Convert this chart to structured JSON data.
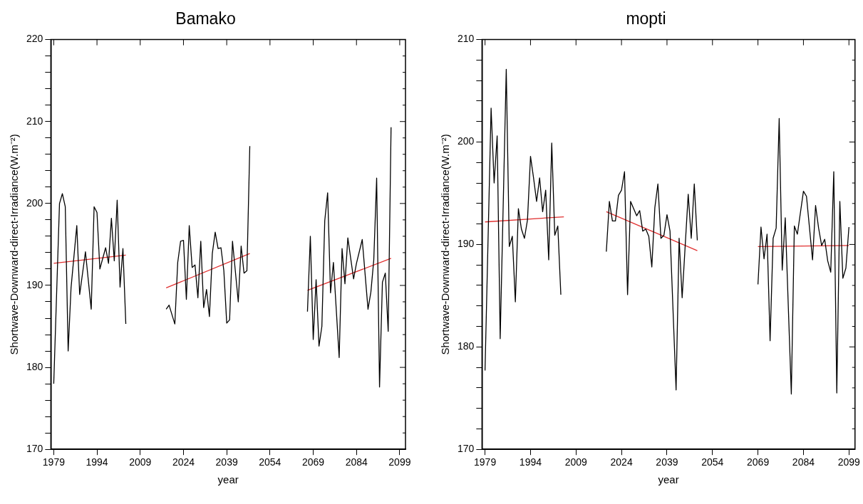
{
  "chart_data": [
    {
      "type": "line",
      "title": "Bamako",
      "xlabel": "year",
      "ylabel": "Shortwave-Downward-direct-Irradiance(W.m⁻²)",
      "xlim": [
        1978,
        2101
      ],
      "xticks": [
        1979,
        1994,
        2009,
        2024,
        2039,
        2054,
        2069,
        2084,
        2099
      ],
      "ylim": [
        170,
        220
      ],
      "yticks": [
        170,
        {
          "value": 172,
          "label": null
        },
        {
          "value": 174,
          "label": null
        },
        {
          "value": 176,
          "label": null
        },
        {
          "value": 178,
          "label": null
        },
        180,
        {
          "value": 182,
          "label": null
        },
        {
          "value": 184,
          "label": null
        },
        {
          "value": 186,
          "label": null
        },
        {
          "value": 188,
          "label": null
        },
        190,
        {
          "value": 192,
          "label": null
        },
        {
          "value": 194,
          "label": null
        },
        {
          "value": 196,
          "label": null
        },
        {
          "value": 198,
          "label": null
        },
        200,
        {
          "value": 202,
          "label": null
        },
        {
          "value": 204,
          "label": null
        },
        {
          "value": 206,
          "label": null
        },
        {
          "value": 208,
          "label": null
        },
        210,
        {
          "value": 212,
          "label": null
        },
        {
          "value": 214,
          "label": null
        },
        {
          "value": 216,
          "label": null
        },
        {
          "value": 218,
          "label": null
        },
        220
      ],
      "grid": false,
      "legend": false,
      "marker": "none",
      "line_style": "solid",
      "series": [
        {
          "color": "#000000",
          "x": [
            1979,
            1981,
            1982,
            1983,
            1984,
            1985,
            1987,
            1988,
            1990,
            1992,
            1993,
            1994,
            1995,
            1997,
            1998,
            1999,
            2000,
            2001,
            2002,
            2003,
            2004
          ],
          "values": [
            178,
            200,
            201.2,
            199.6,
            182,
            189.7,
            197.3,
            188.9,
            194.1,
            187.1,
            199.6,
            198.9,
            192,
            194.6,
            192.7,
            198.2,
            193,
            200.4,
            189.8,
            194.5,
            185.3
          ]
        },
        {
          "color": "#000000",
          "x": [
            2018,
            2019,
            2021,
            2022,
            2023,
            2024,
            2025,
            2026,
            2027,
            2028,
            2029,
            2030,
            2031,
            2032,
            2033,
            2034,
            2035,
            2036,
            2037,
            2038,
            2039,
            2040,
            2041,
            2043,
            2044,
            2045,
            2046,
            2047
          ],
          "values": [
            187.1,
            187.6,
            185.3,
            192.8,
            195.4,
            195.5,
            188.3,
            197.3,
            192.2,
            192.5,
            188.5,
            195.4,
            187.3,
            189.5,
            186.2,
            193.9,
            196.5,
            194.5,
            194.6,
            191.8,
            185.4,
            185.8,
            195.4,
            188,
            194.8,
            191.5,
            191.8,
            207
          ]
        },
        {
          "color": "#000000",
          "x": [
            2067,
            2068,
            2069,
            2070,
            2071,
            2072,
            2073,
            2074,
            2075,
            2076,
            2078,
            2079,
            2080,
            2081,
            2083,
            2084,
            2086,
            2088,
            2089,
            2090,
            2091,
            2092,
            2093,
            2094,
            2095,
            2096
          ],
          "values": [
            186.8,
            196,
            183.4,
            190.7,
            182.6,
            185,
            197.9,
            201.3,
            189.1,
            192.8,
            181.2,
            194.5,
            190.2,
            195.8,
            190.8,
            192.7,
            195.6,
            187.1,
            189.2,
            193.1,
            203.1,
            177.6,
            190.4,
            191.5,
            184.4,
            209.3
          ]
        },
        {
          "color": "#e03030",
          "x": [
            1979,
            2004
          ],
          "values": [
            192.7,
            193.7
          ]
        },
        {
          "color": "#e03030",
          "x": [
            2018,
            2047
          ],
          "values": [
            189.7,
            193.9
          ]
        },
        {
          "color": "#e03030",
          "x": [
            2067,
            2096
          ],
          "values": [
            189.4,
            193.3
          ]
        }
      ]
    },
    {
      "type": "line",
      "title": "mopti",
      "xlabel": "year",
      "ylabel": "Shortwave-Downward-direct-Irradiance(W.m⁻²)",
      "xlim": [
        1978,
        2101
      ],
      "xticks": [
        1979,
        1994,
        2009,
        2024,
        2039,
        2054,
        2069,
        2084,
        2099
      ],
      "ylim": [
        170,
        210
      ],
      "yticks": [
        170,
        {
          "value": 172,
          "label": null
        },
        {
          "value": 174,
          "label": null
        },
        {
          "value": 176,
          "label": null
        },
        {
          "value": 178,
          "label": null
        },
        180,
        {
          "value": 182,
          "label": null
        },
        {
          "value": 184,
          "label": null
        },
        {
          "value": 186,
          "label": null
        },
        {
          "value": 188,
          "label": null
        },
        190,
        {
          "value": 192,
          "label": null
        },
        {
          "value": 194,
          "label": null
        },
        {
          "value": 196,
          "label": null
        },
        {
          "value": 198,
          "label": null
        },
        200,
        {
          "value": 202,
          "label": null
        },
        {
          "value": 204,
          "label": null
        },
        {
          "value": 206,
          "label": null
        },
        {
          "value": 208,
          "label": null
        },
        210
      ],
      "grid": false,
      "legend": false,
      "marker": "none",
      "line_style": "solid",
      "series": [
        {
          "color": "#000000",
          "x": [
            1979,
            1981,
            1982,
            1983,
            1984,
            1986,
            1987,
            1988,
            1989,
            1990,
            1991,
            1992,
            1993,
            1994,
            1995,
            1996,
            1997,
            1998,
            1999,
            2000,
            2001,
            2002,
            2003,
            2004
          ],
          "values": [
            177.7,
            203.3,
            196,
            200.6,
            180.8,
            207.1,
            189.8,
            190.8,
            184.4,
            193.5,
            191.5,
            190.6,
            192.4,
            198.6,
            196.5,
            194.2,
            196.5,
            193.2,
            195.3,
            188.5,
            199.9,
            190.9,
            191.8,
            185.1
          ]
        },
        {
          "color": "#000000",
          "x": [
            2019,
            2020,
            2021,
            2022,
            2023,
            2024,
            2025,
            2026,
            2027,
            2029,
            2030,
            2031,
            2032,
            2033,
            2034,
            2035,
            2036,
            2037,
            2038,
            2039,
            2040,
            2042,
            2043,
            2044,
            2046,
            2047,
            2048,
            2049
          ],
          "values": [
            189.3,
            194.2,
            192.3,
            192.3,
            194.8,
            195.3,
            197.1,
            185.1,
            194.2,
            192.8,
            193.3,
            191.3,
            191.5,
            190.8,
            187.8,
            193.6,
            195.9,
            190.6,
            190.9,
            192.9,
            191.3,
            175.8,
            190.6,
            184.8,
            194.9,
            190.6,
            195.9,
            190.4
          ]
        },
        {
          "color": "#000000",
          "x": [
            2069,
            2070,
            2071,
            2072,
            2073,
            2074,
            2075,
            2076,
            2077,
            2078,
            2080,
            2081,
            2082,
            2084,
            2085,
            2087,
            2088,
            2089,
            2090,
            2091,
            2092,
            2093,
            2094,
            2095,
            2096,
            2097,
            2098,
            2099
          ],
          "values": [
            186.1,
            191.7,
            188.6,
            191,
            180.6,
            190.6,
            191.6,
            202.3,
            187.5,
            192.6,
            175.4,
            191.8,
            191,
            195.2,
            194.7,
            188.5,
            193.8,
            191.6,
            189.9,
            190.5,
            188.4,
            187.3,
            197.1,
            175.5,
            194.2,
            186.7,
            187.7,
            191.7
          ]
        },
        {
          "color": "#e03030",
          "x": [
            1979,
            2005
          ],
          "values": [
            192.2,
            192.7
          ]
        },
        {
          "color": "#e03030",
          "x": [
            2019,
            2049
          ],
          "values": [
            193.2,
            189.4
          ]
        },
        {
          "color": "#e03030",
          "x": [
            2069,
            2099
          ],
          "values": [
            189.8,
            189.9
          ]
        }
      ]
    }
  ]
}
